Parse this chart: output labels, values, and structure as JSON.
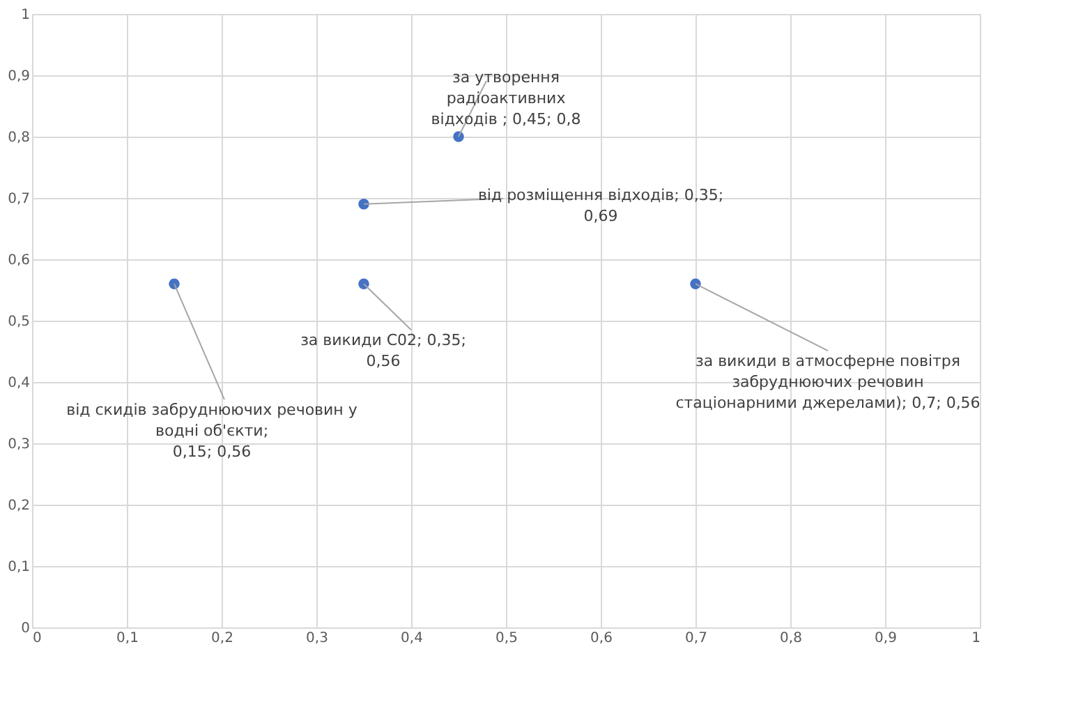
{
  "chart_data": {
    "type": "scatter",
    "x": [
      0.15,
      0.35,
      0.35,
      0.45,
      0.7
    ],
    "series": [
      {
        "color": "#4472c4",
        "values": [
          0.56,
          0.56,
          0.69,
          0.8,
          0.56
        ]
      }
    ],
    "xlim": [
      0,
      1
    ],
    "ylim": [
      0,
      1
    ],
    "xticks": [
      0,
      {
        "value": 0.1,
        "label": "0,1"
      },
      {
        "value": 0.2,
        "label": "0,2"
      },
      {
        "value": 0.3,
        "label": "0,3"
      },
      {
        "value": 0.4,
        "label": "0,4"
      },
      {
        "value": 0.5,
        "label": "0,5"
      },
      {
        "value": 0.6,
        "label": "0,6"
      },
      {
        "value": 0.7,
        "label": "0,7"
      },
      {
        "value": 0.8,
        "label": "0,8"
      },
      {
        "value": 0.9,
        "label": "0,9"
      },
      1
    ],
    "yticks": [
      0,
      {
        "value": 0.1,
        "label": "0,1"
      },
      {
        "value": 0.2,
        "label": "0,2"
      },
      {
        "value": 0.3,
        "label": "0,3"
      },
      {
        "value": 0.4,
        "label": "0,4"
      },
      {
        "value": 0.5,
        "label": "0,5"
      },
      {
        "value": 0.6,
        "label": "0,6"
      },
      {
        "value": 0.7,
        "label": "0,7"
      },
      {
        "value": 0.8,
        "label": "0,8"
      },
      {
        "value": 0.9,
        "label": "0,9"
      },
      1
    ],
    "grid": true,
    "marker": "circle",
    "annotations": [
      {
        "text": "від скидів забруднюючих речовин  у\nводні об'єкти;\n0,15; 0,56",
        "x": 0.15,
        "y": 0.56
      },
      {
        "text": "за викиди С02; 0,35;\n0,56",
        "x": 0.35,
        "y": 0.56
      },
      {
        "text": "від розміщення відходів; 0,35;\n0,69",
        "x": 0.35,
        "y": 0.69
      },
      {
        "text": "за утворення\nрадіоактивних\nвідходів ; 0,45; 0,8",
        "x": 0.45,
        "y": 0.8
      },
      {
        "text": "за викиди в атмосферне повітря\nзабруднюючих речовин\nстаціонарними джерелами); 0,7; 0,56",
        "x": 0.7,
        "y": 0.56
      }
    ]
  }
}
